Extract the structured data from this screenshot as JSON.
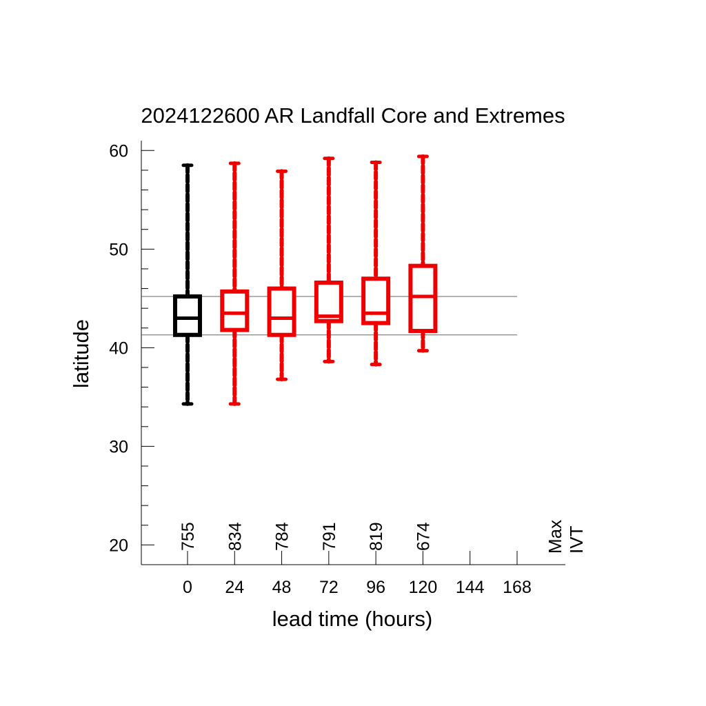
{
  "chart_data": {
    "type": "boxplot",
    "title": "2024122600 AR Landfall Core and Extremes",
    "xlabel": "lead time (hours)",
    "ylabel": "latitude",
    "x_tick_labels": [
      "0",
      "24",
      "48",
      "72",
      "96",
      "120",
      "144",
      "168"
    ],
    "y_tick_labels": [
      "20",
      "30",
      "40",
      "50",
      "60"
    ],
    "ylim": [
      18,
      61
    ],
    "y_major_ticks": [
      20,
      30,
      40,
      50,
      60
    ],
    "y_minor_step": 2,
    "side_label_lines": [
      "Max",
      "IVT"
    ],
    "reference_lines": [
      45.2,
      41.3
    ],
    "colors": {
      "analysis": "#000000",
      "forecast": "#ee0000",
      "axis": "#000000",
      "reference": "#666666"
    },
    "boxes": [
      {
        "lead": 0,
        "count": "755",
        "whisker_low": 34.3,
        "q1": 41.3,
        "median": 43.0,
        "q3": 45.2,
        "whisker_high": 58.5,
        "color": "#000000"
      },
      {
        "lead": 24,
        "count": "834",
        "whisker_low": 34.3,
        "q1": 41.8,
        "median": 43.5,
        "q3": 45.7,
        "whisker_high": 58.7,
        "color": "#ee0000"
      },
      {
        "lead": 48,
        "count": "784",
        "whisker_low": 36.8,
        "q1": 41.3,
        "median": 43.0,
        "q3": 46.0,
        "whisker_high": 57.9,
        "color": "#ee0000"
      },
      {
        "lead": 72,
        "count": "791",
        "whisker_low": 38.6,
        "q1": 42.7,
        "median": 43.2,
        "q3": 46.6,
        "whisker_high": 59.2,
        "color": "#ee0000"
      },
      {
        "lead": 96,
        "count": "819",
        "whisker_low": 38.3,
        "q1": 42.5,
        "median": 43.5,
        "q3": 47.0,
        "whisker_high": 58.8,
        "color": "#ee0000"
      },
      {
        "lead": 120,
        "count": "674",
        "whisker_low": 39.7,
        "q1": 41.7,
        "median": 45.2,
        "q3": 48.3,
        "whisker_high": 59.4,
        "color": "#ee0000"
      }
    ]
  }
}
